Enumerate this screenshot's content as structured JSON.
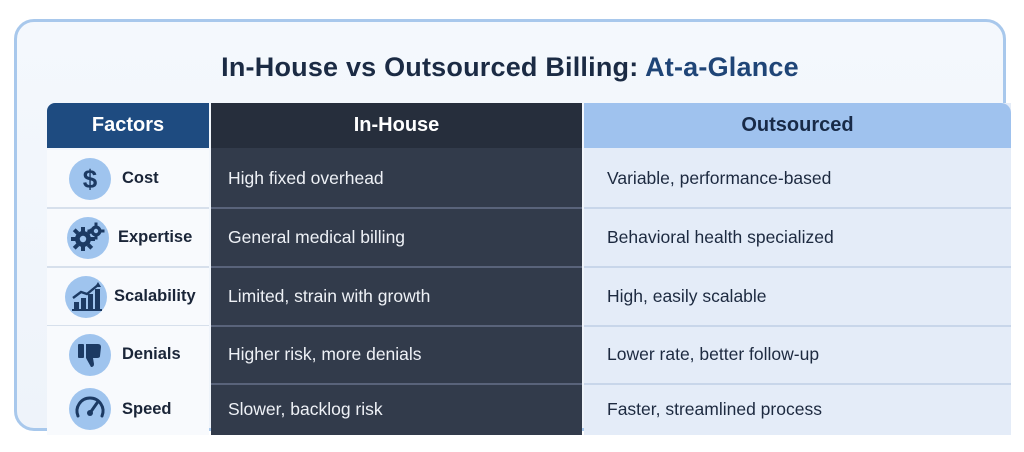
{
  "title": {
    "main": "In-House vs Outsourced Billing: ",
    "accent": "At-a-Glance"
  },
  "headers": {
    "factors": "Factors",
    "inhouse": "In-House",
    "outsourced": "Outsourced"
  },
  "rows": [
    {
      "factor": "Cost",
      "icon": "dollar-icon",
      "inhouse": "High fixed overhead",
      "outsourced": "Variable, performance-based"
    },
    {
      "factor": "Expertise",
      "icon": "gears-icon",
      "inhouse": "General medical billing",
      "outsourced": "Behavioral health specialized"
    },
    {
      "factor": "Scalability",
      "icon": "growth-chart-icon",
      "inhouse": "Limited, strain with growth",
      "outsourced": "High, easily scalable"
    },
    {
      "factor": "Denials",
      "icon": "thumbs-down-icon",
      "inhouse": "Higher risk, more denials",
      "outsourced": "Lower rate, better follow-up"
    },
    {
      "factor": "Speed",
      "icon": "speedometer-icon",
      "inhouse": "Slower, backlog risk",
      "outsourced": "Faster, streamlined process"
    }
  ],
  "colors": {
    "factors_header": "#1e4b80",
    "inhouse_bg": "#323b4b",
    "outsourced_header": "#9fc2ee",
    "outsourced_bg": "#e4ecf8",
    "icon_bg": "#9fc4ee"
  }
}
